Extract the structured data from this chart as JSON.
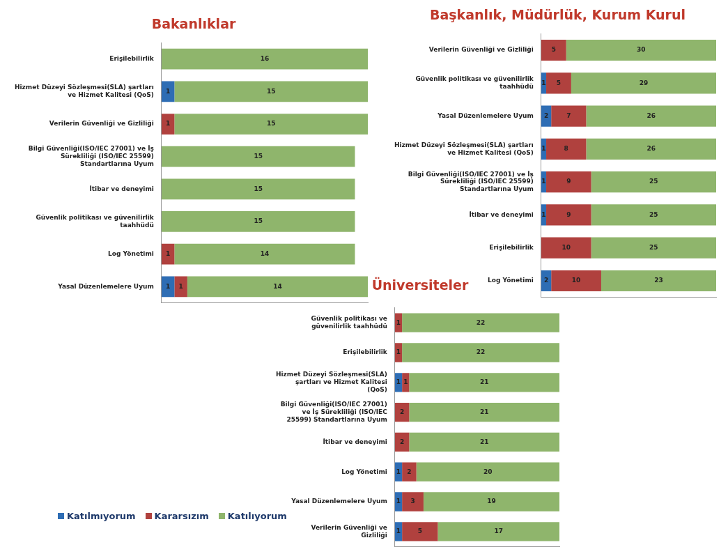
{
  "chart_data": [
    {
      "type": "bar",
      "orientation": "horizontal",
      "stacked": true,
      "title": "Bakanlıklar",
      "categories": [
        "Erişilebilirlik",
        "Hizmet Düzeyi Sözleşmesi(SLA) şartları ve Hizmet Kalitesi (QoS)",
        "Verilerin Güvenliği ve Gizliliği",
        "Bilgi Güvenliği(ISO/IEC 27001) ve İş Sürekliliği (ISO/IEC 25599) Standartlarına Uyum",
        "İtibar ve deneyimi",
        "Güvenlik politikası ve güvenilirlik taahhüdü",
        "Log Yönetimi",
        "Yasal Düzenlemelere Uyum"
      ],
      "xlim": [
        0,
        16
      ],
      "tick_labels": "y",
      "data_labels": true,
      "series": [
        {
          "color": "#2e6db4",
          "values": [
            null,
            1,
            null,
            null,
            null,
            null,
            null,
            1
          ]
        },
        {
          "color": "#b0413e",
          "values": [
            null,
            null,
            1,
            null,
            null,
            null,
            1,
            1
          ]
        },
        {
          "color": "#8fb56c",
          "values": [
            16,
            15,
            15,
            15,
            15,
            15,
            14,
            14
          ]
        }
      ]
    },
    {
      "type": "bar",
      "orientation": "horizontal",
      "stacked": true,
      "title": "Başkanlık, Müdürlük, Kurum Kurul",
      "categories": [
        "Verilerin Güvenliği ve Gizliliği",
        "Güvenlik politikası ve güvenilirlik taahhüdü",
        "Yasal Düzenlemelere Uyum",
        "Hizmet Düzeyi Sözleşmesi(SLA) şartları ve Hizmet Kalitesi (QoS)",
        "Bilgi Güvenliği(ISO/IEC 27001) ve İş Sürekliliği (ISO/IEC 25599) Standartlarına Uyum",
        "İtibar ve deneyimi",
        "Erişilebilirlik",
        "Log Yönetimi"
      ],
      "xlim": [
        0,
        35
      ],
      "tick_labels": "y",
      "data_labels": true,
      "series": [
        {
          "color": "#2e6db4",
          "values": [
            null,
            1,
            2,
            1,
            1,
            1,
            null,
            2
          ]
        },
        {
          "color": "#b0413e",
          "values": [
            5,
            5,
            7,
            8,
            9,
            9,
            10,
            10
          ]
        },
        {
          "color": "#8fb56c",
          "values": [
            30,
            29,
            26,
            26,
            25,
            25,
            25,
            23
          ]
        }
      ]
    },
    {
      "type": "bar",
      "orientation": "horizontal",
      "stacked": true,
      "title": "Üniversiteler",
      "categories": [
        "Güvenlik politikası ve güvenilirlik taahhüdü",
        "Erişilebilirlik",
        "Hizmet Düzeyi Sözleşmesi(SLA) şartları ve Hizmet Kalitesi (QoS)",
        "Bilgi Güvenliği(ISO/IEC 27001) ve İş Sürekliliği (ISO/IEC 25599) Standartlarına Uyum",
        "İtibar ve deneyimi",
        "Log Yönetimi",
        "Yasal Düzenlemelere Uyum",
        "Verilerin Güvenliği ve Gizliliği"
      ],
      "xlim": [
        0,
        23
      ],
      "tick_labels": "y",
      "data_labels": true,
      "legend": "bottom left",
      "series": [
        {
          "name": "Katılmıyorum",
          "color": "#2e6db4",
          "values": [
            null,
            null,
            1,
            null,
            null,
            1,
            1,
            1
          ]
        },
        {
          "name": "Kararsızım",
          "color": "#b0413e",
          "values": [
            1,
            1,
            1,
            2,
            2,
            2,
            3,
            5
          ]
        },
        {
          "name": "Katılıyorum",
          "color": "#8fb56c",
          "values": [
            22,
            22,
            21,
            21,
            21,
            20,
            19,
            17
          ]
        }
      ]
    }
  ]
}
